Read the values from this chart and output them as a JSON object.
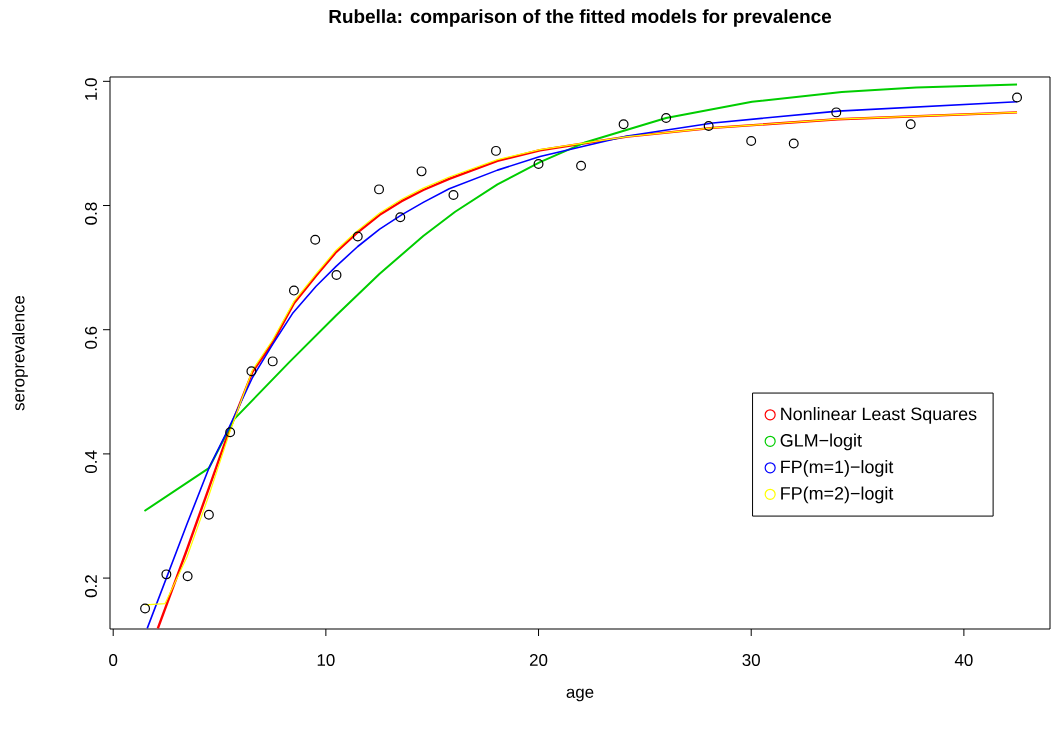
{
  "chart_data": {
    "type": "line",
    "title": "Rubella: comparison of the fitted models for prevalence",
    "xlabel": "age",
    "ylabel": "seroprevalence",
    "xlim": [
      -0.15,
      44.05
    ],
    "ylim": [
      0.118,
      1.007
    ],
    "xticks": [
      0,
      10,
      20,
      30,
      40
    ],
    "yticks": [
      0.2,
      0.4,
      0.6,
      0.8,
      {
        "value": 1,
        "label": "1.0"
      }
    ],
    "legend": "right",
    "series": [
      {
        "type": "scatter",
        "marker": "circle",
        "color": "#000000",
        "x": [
          1.5,
          2.5,
          3.5,
          4.5,
          5.5,
          6.5,
          7.5,
          8.5,
          9.5,
          10.5,
          11.5,
          12.5,
          13.5,
          14.5,
          16,
          18,
          20,
          22,
          24,
          26,
          28,
          30,
          32,
          34,
          37.5,
          42.5
        ],
        "values": [
          0.151,
          0.206,
          0.203,
          0.302,
          0.435,
          0.533,
          0.549,
          0.663,
          0.745,
          0.688,
          0.75,
          0.826,
          0.781,
          0.855,
          0.817,
          0.888,
          0.867,
          0.864,
          0.931,
          0.941,
          0.928,
          0.904,
          0.9,
          0.95,
          0.931,
          0.974
        ]
      },
      {
        "name": "Nonlinear Least Squares",
        "color": "#ff0000",
        "x": [
          2.1,
          3.47,
          4.5,
          5.44,
          6.55,
          7.49,
          8.51,
          9.54,
          10.48,
          11.5,
          12.53,
          13.56,
          14.58,
          15.8,
          18.07,
          20.07,
          24.17,
          28.2,
          34.08,
          42.5
        ],
        "values": [
          0.119,
          0.246,
          0.345,
          0.436,
          0.532,
          0.579,
          0.643,
          0.687,
          0.725,
          0.757,
          0.785,
          0.807,
          0.825,
          0.843,
          0.872,
          0.889,
          0.911,
          0.925,
          0.939,
          0.95
        ]
      },
      {
        "name": "GLM−logit",
        "color": "#00cd00",
        "x": [
          1.47,
          4.5,
          5.69,
          8.26,
          10.48,
          12.53,
          14.58,
          16.08,
          18.07,
          20.07,
          22.14,
          26.0,
          30.04,
          34.26,
          37.76,
          42.5
        ],
        "values": [
          0.308,
          0.377,
          0.456,
          0.547,
          0.623,
          0.69,
          0.751,
          0.79,
          0.834,
          0.87,
          0.901,
          0.941,
          0.967,
          0.983,
          0.99,
          0.995
        ]
      },
      {
        "name": "FP(m=1)−logit",
        "color": "#0000ff",
        "x": [
          1.6,
          3.47,
          4.5,
          5.44,
          6.55,
          7.49,
          8.43,
          9.54,
          10.48,
          11.5,
          12.53,
          13.56,
          14.58,
          15.8,
          18.07,
          20.07,
          24.17,
          28.2,
          34.08,
          42.5
        ],
        "values": [
          0.119,
          0.287,
          0.377,
          0.442,
          0.523,
          0.576,
          0.626,
          0.67,
          0.702,
          0.734,
          0.762,
          0.785,
          0.805,
          0.827,
          0.857,
          0.879,
          0.912,
          0.933,
          0.952,
          0.967
        ]
      },
      {
        "name": "FP(m=2)−logit",
        "color": "#ffff00",
        "x": [
          1.5,
          2.44,
          3.47,
          4.5,
          5.52,
          6.55,
          7.49,
          8.51,
          9.54,
          10.48,
          11.5,
          12.53,
          13.56,
          14.58,
          15.8,
          18.07,
          20.07,
          24.17,
          28.2,
          34.08,
          42.5
        ],
        "values": [
          0.157,
          0.159,
          0.234,
          0.333,
          0.439,
          0.535,
          0.583,
          0.646,
          0.69,
          0.728,
          0.76,
          0.788,
          0.81,
          0.828,
          0.846,
          0.874,
          0.89,
          0.911,
          0.925,
          0.939,
          0.95
        ]
      }
    ]
  }
}
